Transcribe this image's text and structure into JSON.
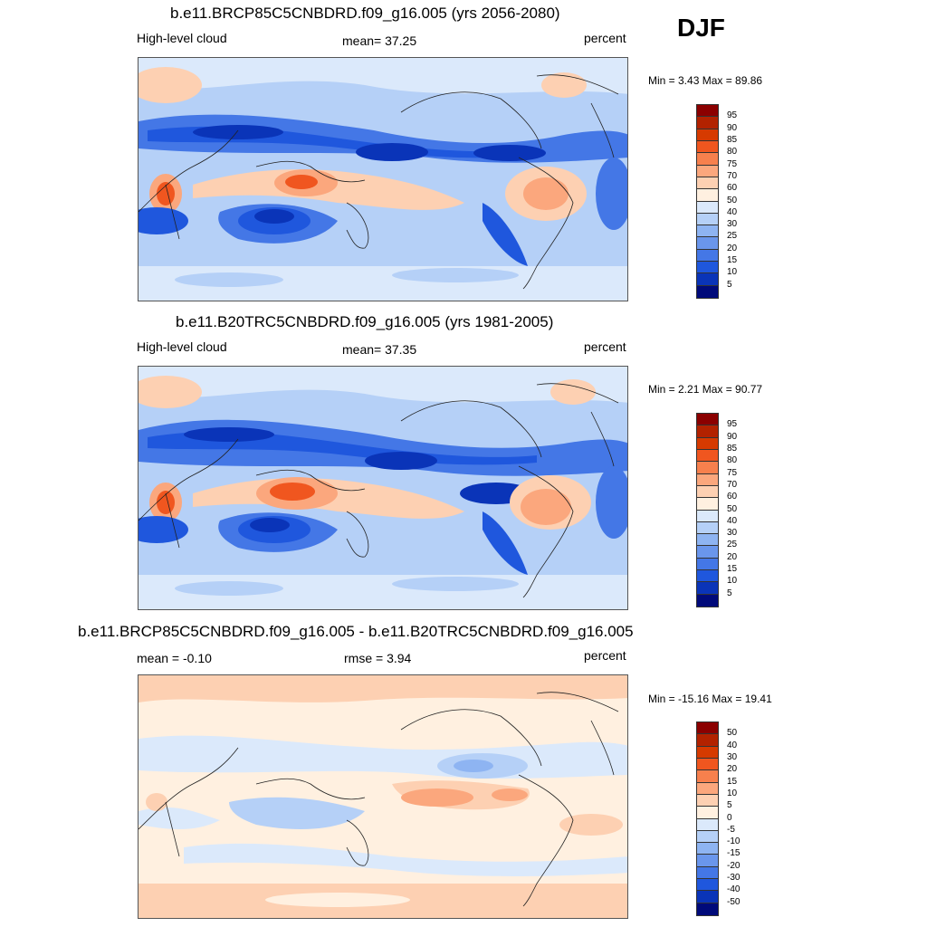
{
  "season": "DJF",
  "panels": [
    {
      "title": "b.e11.BRCP85C5CNBDRD.f09_g16.005 (yrs 2056-2080)",
      "left_label": "High-level cloud",
      "center_label": "mean=  37.25",
      "right_label": "percent",
      "minmax": "Min =   3.43 Max =  89.86"
    },
    {
      "title": "b.e11.B20TRC5CNBDRD.f09_g16.005 (yrs 1981-2005)",
      "left_label": "High-level cloud",
      "center_label": "mean=  37.35",
      "right_label": "percent",
      "minmax": "Min =   2.21 Max =  90.77"
    },
    {
      "title": "b.e11.BRCP85C5CNBDRD.f09_g16.005 - b.e11.B20TRC5CNBDRD.f09_g16.005",
      "left_label": "mean =  -0.10",
      "center_label": "rmse =   3.94",
      "right_label": "percent",
      "minmax": "Min = -15.16 Max =  19.41"
    }
  ],
  "colorbar_abs": {
    "labels": [
      "95",
      "90",
      "85",
      "80",
      "75",
      "70",
      "60",
      "50",
      "40",
      "30",
      "25",
      "20",
      "15",
      "10",
      "5"
    ],
    "colors": [
      "#8b0000",
      "#b22200",
      "#d63a00",
      "#f0561f",
      "#f7804d",
      "#fba77d",
      "#fdd0b2",
      "#fff0e0",
      "#dbe9fb",
      "#b5d0f7",
      "#8eb4f2",
      "#6a96ec",
      "#4477e6",
      "#1f57dd",
      "#0a34b8",
      "#000a7a"
    ]
  },
  "colorbar_diff": {
    "labels": [
      "50",
      "40",
      "30",
      "20",
      "15",
      "10",
      "5",
      "0",
      "-5",
      "-10",
      "-15",
      "-20",
      "-30",
      "-40",
      "-50"
    ],
    "colors": [
      "#8b0000",
      "#b22200",
      "#d63a00",
      "#f0561f",
      "#f7804d",
      "#fba77d",
      "#fdd0b2",
      "#fff0e0",
      "#dbe9fb",
      "#b5d0f7",
      "#8eb4f2",
      "#6a96ec",
      "#4477e6",
      "#1f57dd",
      "#0a34b8",
      "#000a7a"
    ]
  },
  "chart_data": [
    {
      "type": "heatmap",
      "title": "b.e11.BRCP85C5CNBDRD.f09_g16.005 (yrs 2056-2080)",
      "variable": "High-level cloud",
      "units": "percent",
      "mean": 37.25,
      "min": 3.43,
      "max": 89.86,
      "contour_levels": [
        5,
        10,
        15,
        20,
        25,
        30,
        40,
        50,
        60,
        70,
        75,
        80,
        85,
        90,
        95
      ],
      "season": "DJF"
    },
    {
      "type": "heatmap",
      "title": "b.e11.B20TRC5CNBDRD.f09_g16.005 (yrs 1981-2005)",
      "variable": "High-level cloud",
      "units": "percent",
      "mean": 37.35,
      "min": 2.21,
      "max": 90.77,
      "contour_levels": [
        5,
        10,
        15,
        20,
        25,
        30,
        40,
        50,
        60,
        70,
        75,
        80,
        85,
        90,
        95
      ],
      "season": "DJF"
    },
    {
      "type": "heatmap",
      "title": "b.e11.BRCP85C5CNBDRD.f09_g16.005 - b.e11.B20TRC5CNBDRD.f09_g16.005",
      "units": "percent",
      "mean": -0.1,
      "rmse": 3.94,
      "min": -15.16,
      "max": 19.41,
      "contour_levels": [
        -50,
        -40,
        -30,
        -20,
        -15,
        -10,
        -5,
        0,
        5,
        10,
        15,
        20,
        30,
        40,
        50
      ],
      "season": "DJF"
    }
  ]
}
